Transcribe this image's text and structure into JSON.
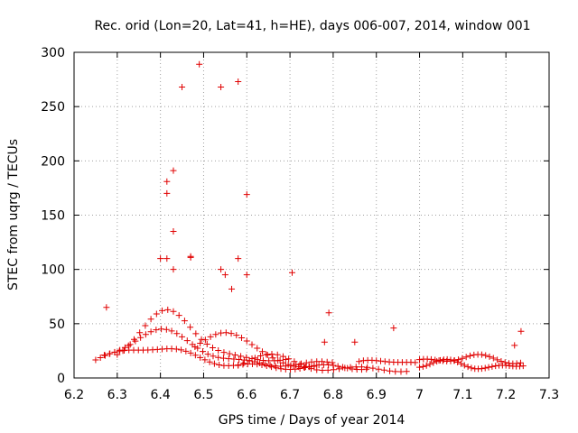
{
  "chart_data": {
    "type": "scatter",
    "title": "Rec. orid (Lon=20, Lat=41, h=HE), days 006-007, 2014, window 001",
    "xlabel": "GPS time / Days of year 2014",
    "ylabel": "STEC from uqrg / TECUs",
    "xlim": [
      6.2,
      7.3
    ],
    "ylim": [
      0,
      300
    ],
    "x_ticks": [
      "6.2",
      "6.3",
      "6.4",
      "6.5",
      "6.6",
      "6.7",
      "6.8",
      "6.9",
      "7",
      "7.1",
      "7.2",
      "7.3"
    ],
    "y_ticks": [
      "0",
      "50",
      "100",
      "150",
      "200",
      "250",
      "300"
    ],
    "grid": true,
    "marker": "+",
    "color": "#e00000",
    "series": [
      {
        "points": [
          [
            6.45,
            268
          ],
          [
            6.49,
            289
          ],
          [
            6.54,
            268
          ],
          [
            6.58,
            273
          ],
          [
            6.43,
            191
          ],
          [
            6.415,
            181
          ],
          [
            6.415,
            170
          ],
          [
            6.6,
            169
          ],
          [
            6.43,
            135
          ],
          [
            6.4,
            110
          ],
          [
            6.415,
            110
          ],
          [
            6.47,
            112
          ],
          [
            6.47,
            111
          ],
          [
            6.58,
            110
          ],
          [
            6.43,
            100
          ],
          [
            6.54,
            100
          ],
          [
            6.55,
            95
          ],
          [
            6.6,
            95
          ],
          [
            6.705,
            97
          ],
          [
            6.565,
            82
          ],
          [
            6.275,
            65
          ],
          [
            6.79,
            60
          ],
          [
            6.94,
            46
          ],
          [
            7.235,
            43
          ],
          [
            7.22,
            30
          ],
          [
            6.85,
            33
          ],
          [
            6.78,
            33
          ]
        ]
      }
    ]
  }
}
